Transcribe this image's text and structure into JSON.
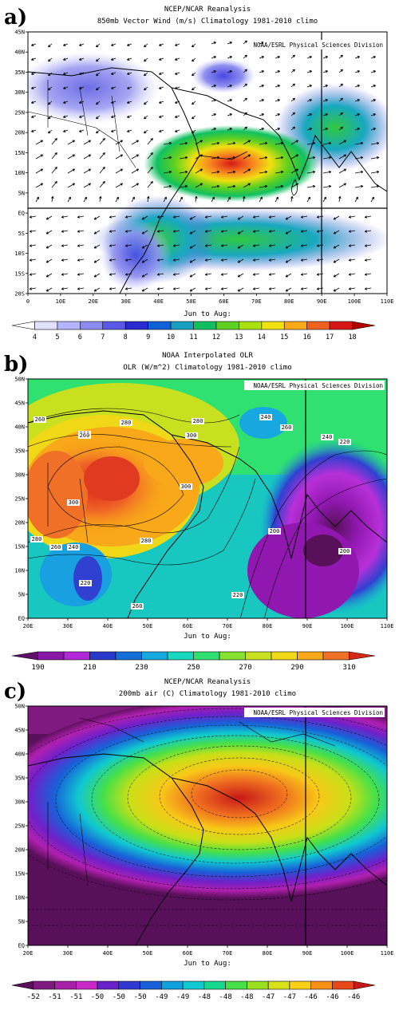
{
  "chart_data": [
    {
      "panel": "a)",
      "type": "heatmap",
      "title": "NCEP/NCAR Reanalysis",
      "subtitle": "850mb Vector Wind (m/s) Climatology 1981-2010 climo",
      "credit": "NOAA/ESRL Physical Sciences Division",
      "season": "Jun to Aug:",
      "overlay": "wind vectors",
      "x_ticks": [
        "0",
        "10E",
        "20E",
        "30E",
        "40E",
        "50E",
        "60E",
        "70E",
        "80E",
        "90E",
        "100E",
        "110E"
      ],
      "y_ticks": [
        "45N",
        "40N",
        "35N",
        "30N",
        "25N",
        "20N",
        "15N",
        "10N",
        "5N",
        "EQ",
        "5S",
        "10S",
        "15S",
        "20S"
      ],
      "colorbar": [
        "4",
        "5",
        "6",
        "7",
        "8",
        "9",
        "10",
        "11",
        "12",
        "13",
        "14",
        "15",
        "16",
        "17",
        "18"
      ],
      "colors": [
        "#ffffff",
        "#e0e0ff",
        "#b4b4fa",
        "#8c8cf0",
        "#5a5ae6",
        "#2a2ad2",
        "#1060d8",
        "#18a0c0",
        "#10c060",
        "#60d020",
        "#a8e010",
        "#f0e010",
        "#f8a818",
        "#f06020",
        "#d81818",
        "#b00000"
      ]
    },
    {
      "panel": "b)",
      "type": "heatmap",
      "title": "NOAA Interpolated OLR",
      "subtitle": "OLR (W/m^2) Climatology 1981-2010 climo",
      "credit": "NOAA/ESRL Physical Sciences Division",
      "season": "Jun to Aug:",
      "x_ticks": [
        "20E",
        "30E",
        "40E",
        "50E",
        "60E",
        "70E",
        "80E",
        "90E",
        "100E",
        "110E"
      ],
      "y_ticks": [
        "50N",
        "45N",
        "40N",
        "35N",
        "30N",
        "25N",
        "20N",
        "15N",
        "10N",
        "5N",
        "EQ"
      ],
      "contour_labels": [
        "280",
        "300",
        "260",
        "240",
        "220",
        "200"
      ],
      "colorbar": [
        "190",
        "210",
        "230",
        "250",
        "270",
        "290",
        "310"
      ],
      "colors": [
        "#60106a",
        "#8818a8",
        "#b028d8",
        "#2838c8",
        "#1470d8",
        "#18a8e0",
        "#18d8c0",
        "#30e070",
        "#88e030",
        "#c8e020",
        "#f0d818",
        "#f8a818",
        "#f07028",
        "#d82818"
      ]
    },
    {
      "panel": "c)",
      "type": "heatmap",
      "title": "NCEP/NCAR Reanalysis",
      "subtitle": "200mb air (C) Climatology 1981-2010 climo",
      "credit": "NOAA/ESRL Physical Sciences Division",
      "season": "Jun to Aug:",
      "x_ticks": [
        "20E",
        "30E",
        "40E",
        "50E",
        "60E",
        "70E",
        "80E",
        "90E",
        "100E",
        "110E"
      ],
      "y_ticks": [
        "50N",
        "45N",
        "40N",
        "35N",
        "30N",
        "25N",
        "20N",
        "15N",
        "10N",
        "5N",
        "EQ"
      ],
      "colorbar": [
        "-52",
        "-51",
        "-51",
        "-50",
        "-50",
        "-50",
        "-49",
        "-49",
        "-48",
        "-48",
        "-48",
        "-47",
        "-47",
        "-46",
        "-46",
        "-46"
      ],
      "colors": [
        "#58105a",
        "#801a80",
        "#a820a8",
        "#c828c8",
        "#6820c8",
        "#3038d0",
        "#1860d8",
        "#10a0e0",
        "#10c8d0",
        "#18d890",
        "#48e048",
        "#98e020",
        "#d8e018",
        "#f8d018",
        "#f89018",
        "#e84818",
        "#c81818"
      ]
    }
  ]
}
